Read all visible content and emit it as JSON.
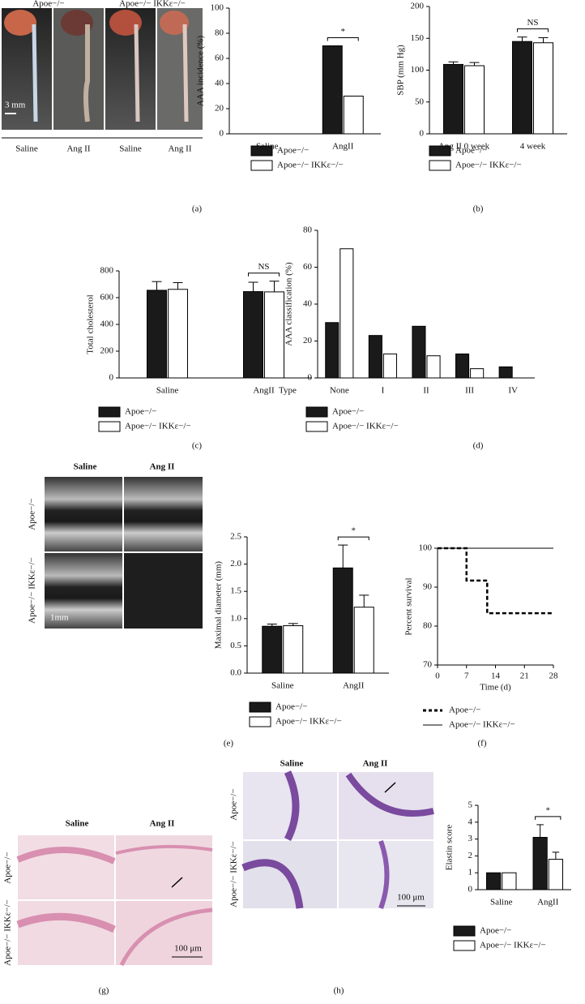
{
  "chart_data": [
    {
      "type": "bar",
      "ylabel": "AAA incidence (%)",
      "categories": [
        "Saline",
        "AngII"
      ],
      "series": [
        {
          "name": "Apoe−/−",
          "color": "#1a1a1a",
          "values": [
            0,
            70
          ]
        },
        {
          "name": "Apoe−/− IKKε−/−",
          "color": "#ffffff",
          "values": [
            0,
            30
          ]
        }
      ],
      "ylim": [
        0,
        100
      ],
      "yticks": [
        0,
        20,
        40,
        60,
        80,
        100
      ],
      "annotation": "*"
    },
    {
      "type": "bar",
      "ylabel": "SBP (mm Hg)",
      "categories": [
        "Ang II 0 week",
        "4 week"
      ],
      "series": [
        {
          "name": "Apoe−/−",
          "color": "#1a1a1a",
          "values": [
            109,
            145
          ],
          "errors": [
            4,
            7
          ]
        },
        {
          "name": "Apoe−/− IKKε−/−",
          "color": "#ffffff",
          "values": [
            107,
            143
          ],
          "errors": [
            5,
            8
          ]
        }
      ],
      "ylim": [
        0,
        200
      ],
      "yticks": [
        0,
        50,
        100,
        150,
        200
      ],
      "annotation": "NS"
    },
    {
      "type": "bar",
      "ylabel": "Total cholesterol",
      "categories": [
        "Saline",
        "AngII"
      ],
      "series": [
        {
          "name": "Apoe−/−",
          "color": "#1a1a1a",
          "values": [
            655,
            645
          ],
          "errors": [
            65,
            70
          ]
        },
        {
          "name": "Apoe−/− IKKε−/−",
          "color": "#ffffff",
          "values": [
            662,
            643
          ],
          "errors": [
            50,
            80
          ]
        }
      ],
      "ylim": [
        0,
        800
      ],
      "yticks": [
        0,
        200,
        400,
        600,
        800
      ],
      "annotation": "NS"
    },
    {
      "type": "bar",
      "ylabel": "AAA classification (%)",
      "xlabel": "Type",
      "categories": [
        "None",
        "I",
        "II",
        "III",
        "IV"
      ],
      "series": [
        {
          "name": "Apoe−/−",
          "color": "#1a1a1a",
          "values": [
            30,
            23,
            28,
            13,
            6
          ]
        },
        {
          "name": "Apoe−/− IKKε−/−",
          "color": "#ffffff",
          "values": [
            70,
            13,
            12,
            5,
            0
          ]
        }
      ],
      "ylim": [
        0,
        80
      ],
      "yticks": [
        0,
        20,
        40,
        60,
        80
      ]
    },
    {
      "type": "bar",
      "ylabel": "Maximal diameter (mm)",
      "categories": [
        "Saline",
        "AngII"
      ],
      "series": [
        {
          "name": "Apoe−/−",
          "color": "#1a1a1a",
          "values": [
            0.86,
            1.93
          ],
          "errors": [
            0.04,
            0.42
          ]
        },
        {
          "name": "Apoe−/− IKKε−/−",
          "color": "#ffffff",
          "values": [
            0.87,
            1.21
          ],
          "errors": [
            0.04,
            0.22
          ]
        }
      ],
      "ylim": [
        0,
        2.5
      ],
      "yticks": [
        {
          "value": 0,
          "label": "0.0"
        },
        0.5,
        {
          "value": 1,
          "label": "1.0"
        },
        1.5,
        {
          "value": 2,
          "label": "2.0"
        },
        2.5
      ],
      "annotation": "*"
    },
    {
      "type": "line",
      "ylabel": "Percent survival",
      "xlabel": "Time (d)",
      "xlim": [
        0,
        28
      ],
      "xticks": [
        0,
        7,
        14,
        21,
        28
      ],
      "ylim": [
        70,
        100
      ],
      "yticks": [
        70,
        80,
        90,
        100
      ],
      "series": [
        {
          "name": "Apoe−/−",
          "color": "#000000",
          "line_style": "dashed",
          "x": [
            0,
            7,
            7,
            12,
            12,
            28
          ],
          "values": [
            100,
            100,
            91.7,
            91.7,
            83.3,
            83.3
          ]
        },
        {
          "name": "Apoe−/− IKKε−/−",
          "color": "#000000",
          "line_style": "solid",
          "x": [
            0,
            28
          ],
          "values": [
            100,
            100
          ]
        }
      ]
    },
    {
      "type": "bar",
      "ylabel": "Elastin score",
      "categories": [
        "Saline",
        "AngII"
      ],
      "series": [
        {
          "name": "Apoe−/−",
          "color": "#1a1a1a",
          "values": [
            1,
            3.1
          ],
          "errors": [
            null,
            0.75
          ]
        },
        {
          "name": "Apoe−/− IKKε−/−",
          "color": "#ffffff",
          "values": [
            1,
            1.8
          ],
          "errors": [
            null,
            0.42
          ]
        }
      ],
      "ylim": [
        0,
        5
      ],
      "yticks": [
        0,
        1,
        2,
        3,
        4,
        5
      ],
      "annotation": "*"
    }
  ],
  "photos": [
    {
      "groups": [
        "Apoe−/−",
        "Apoe−/− IKKε−/−"
      ],
      "columns": [
        "Saline",
        "Ang II",
        "Saline",
        "Ang II"
      ],
      "scale_bar": "3 mm"
    },
    {
      "columns": [
        "Saline",
        "Ang II"
      ],
      "rows": [
        "Apoe−/−",
        "Apoe−/− IKKε−/−"
      ],
      "scale_bar": "1mm"
    },
    {
      "columns": [
        "Saline",
        "Ang II"
      ],
      "rows": [
        "Apoe−/−",
        "Apoe−/− IKKε−/−"
      ],
      "scale_bar": "100 μm"
    },
    {
      "columns": [
        "Saline",
        "Ang II"
      ],
      "rows": [
        "Apoe−/−",
        "Apoe−/− IKKε−/−"
      ],
      "scale_bar": "100 μm"
    }
  ],
  "panels": [
    "(a)",
    "(b)",
    "(c)",
    "(d)",
    "(e)",
    "(f)",
    "(g)",
    "(h)"
  ]
}
